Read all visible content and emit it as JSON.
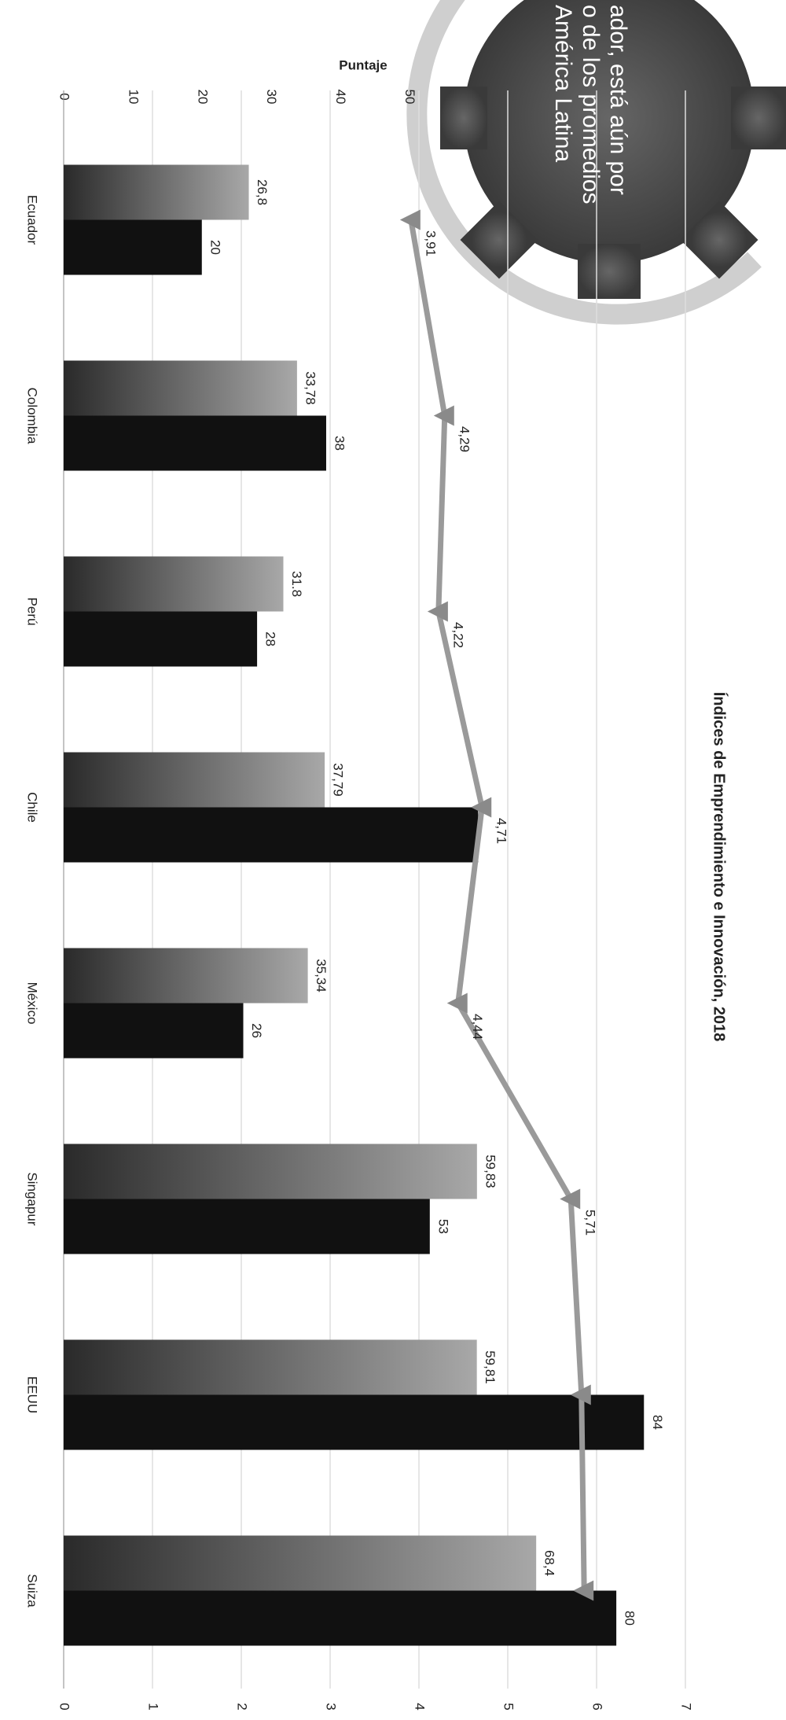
{
  "chart_data": {
    "type": "bar-line",
    "title": "Índices de Emprendimiento e Innovación, 2018",
    "y_label": "Puntaje",
    "annotation": [
      "ador, está aún por",
      "o de los promedios",
      "América Latina"
    ],
    "categories": [
      "Ecuador",
      "Colombia",
      "Perú",
      "Chile",
      "México",
      "Singapur",
      "EEUU",
      "Suiza"
    ],
    "series": [
      {
        "color": "#a8a8a8",
        "values": [
          26.8,
          33.78,
          31.8,
          37.79,
          35.34,
          59.83,
          59.81,
          68.4
        ],
        "value_labels": [
          "26,8",
          "33,78",
          "31.8",
          "37,79",
          "35,34",
          "59,83",
          "59,81",
          "68,4"
        ]
      },
      {
        "color": "#111111",
        "values": [
          20,
          38,
          28,
          60,
          26,
          53,
          84,
          80
        ],
        "value_labels": [
          "20",
          "38",
          "28",
          null,
          "26",
          "53",
          "84",
          "80"
        ]
      },
      {
        "color": "#9a9a9a",
        "axis": "y2",
        "line": true,
        "values": [
          3.91,
          4.29,
          4.22,
          4.71,
          4.44,
          5.71,
          5.83,
          5.86
        ],
        "value_labels": [
          "3,91",
          "4,29",
          "4,22",
          "4,71",
          "4,44",
          "5,71",
          null,
          null
        ]
      }
    ],
    "ylim": [
      0,
      90
    ],
    "yticks": [
      0,
      10,
      20,
      30,
      40,
      50
    ],
    "y2lim": [
      0,
      7
    ],
    "y2ticks": [
      0,
      1,
      2,
      3,
      4,
      5,
      6,
      7
    ],
    "grid": true
  }
}
